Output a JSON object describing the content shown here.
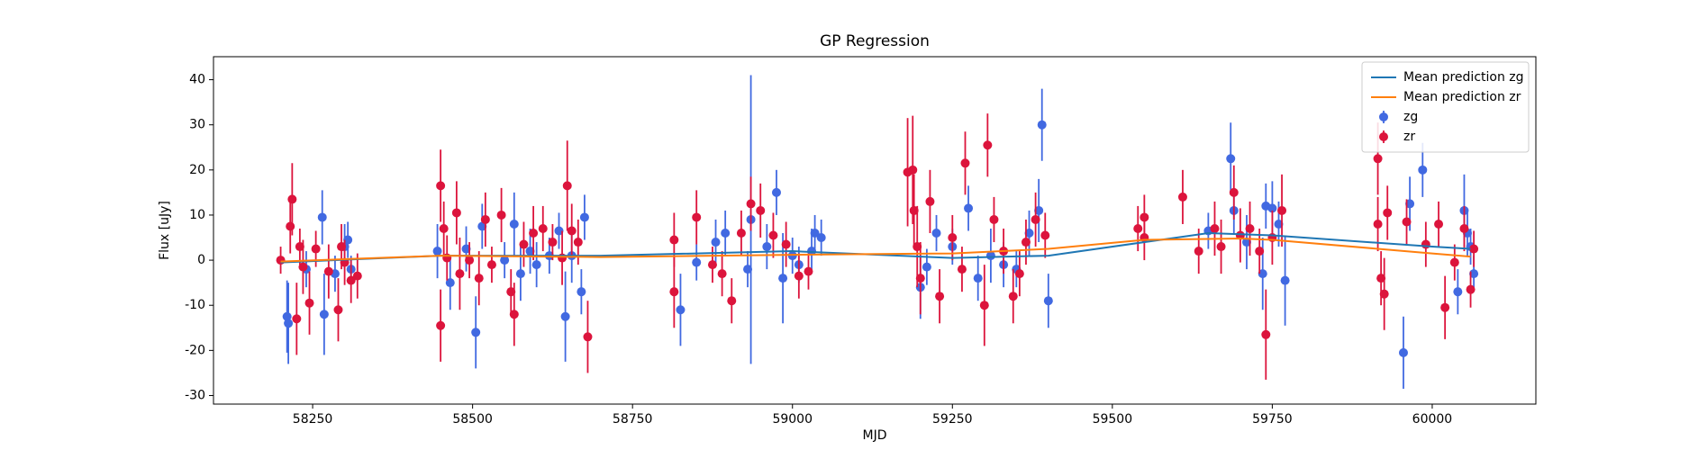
{
  "chart_data": {
    "type": "scatter",
    "title": "GP Regression",
    "xlabel": "MJD",
    "ylabel": "Flux [uJy]",
    "xlim": [
      58095,
      60162
    ],
    "ylim": [
      -31.9,
      45.1
    ],
    "xticks": [
      58250,
      58500,
      58750,
      59000,
      59250,
      59500,
      59750,
      60000
    ],
    "yticks": [
      -30,
      -20,
      -10,
      0,
      10,
      20,
      30,
      40
    ],
    "legend": "upper right",
    "series": [
      {
        "name": "Mean prediction zg",
        "type": "line",
        "color": "#1f77b4",
        "x": [
          58200,
          58450,
          58700,
          59000,
          59250,
          59400,
          59650,
          59750,
          60000,
          60060
        ],
        "values": [
          -0.5,
          1,
          1,
          2,
          0.5,
          1,
          6,
          5.5,
          3,
          2.5
        ]
      },
      {
        "name": "Mean prediction zr",
        "type": "line",
        "color": "#ff7f0e",
        "x": [
          58200,
          58450,
          58700,
          59000,
          59250,
          59400,
          59550,
          59700,
          59750,
          60000,
          60060
        ],
        "values": [
          -0.3,
          1,
          0.7,
          1.2,
          1.5,
          2.5,
          4.5,
          4.8,
          4.5,
          1.5,
          0.8
        ]
      },
      {
        "name": "zg",
        "type": "errorbar",
        "color": "#4169e1",
        "x": [
          58210,
          58212,
          58240,
          58265,
          58268,
          58285,
          58300,
          58305,
          58310,
          58445,
          58465,
          58490,
          58505,
          58515,
          58550,
          58565,
          58575,
          58590,
          58600,
          58620,
          58635,
          58645,
          58655,
          58675,
          58670,
          58825,
          58850,
          58880,
          58895,
          58930,
          58935,
          58960,
          58975,
          58985,
          59000,
          59010,
          59030,
          59035,
          59045,
          59200,
          59210,
          59225,
          59250,
          59275,
          59290,
          59310,
          59330,
          59350,
          59370,
          59385,
          59390,
          59400,
          59650,
          59685,
          59690,
          59710,
          59735,
          59740,
          59750,
          59760,
          59770,
          59955,
          59965,
          59985,
          60040,
          60050,
          60055,
          60065,
          60060
        ],
        "values": [
          -12.5,
          -14,
          -2,
          9.5,
          -12,
          -3,
          3,
          4.5,
          -2,
          2,
          -5,
          2.5,
          -16,
          7.5,
          0,
          8,
          -3,
          2,
          -1,
          1,
          6.5,
          -12.5,
          1,
          9.5,
          -7,
          -11,
          -0.5,
          4,
          6,
          -2,
          9,
          3,
          15,
          -4,
          1,
          -1,
          2,
          6,
          5,
          -6,
          -1.5,
          6,
          3,
          11.5,
          -4,
          1,
          -1,
          -2,
          6,
          11,
          30,
          -9,
          6.5,
          22.5,
          11,
          4,
          -3,
          12,
          11.5,
          8,
          -4.5,
          -20.5,
          12.5,
          20,
          -7,
          11,
          6,
          -3,
          3
        ],
        "errors": [
          8,
          9,
          4,
          6,
          9,
          4,
          5,
          4,
          3,
          6,
          6,
          5,
          8,
          5,
          4,
          7,
          6,
          5,
          5,
          4,
          4,
          10,
          6,
          5,
          5,
          8,
          4,
          5,
          5,
          4,
          32,
          5,
          5,
          10,
          4,
          4,
          5,
          4,
          4,
          7,
          4,
          4,
          4,
          5,
          5,
          6,
          5,
          4,
          5,
          7,
          8,
          6,
          4,
          8,
          5,
          6,
          8,
          5,
          6,
          5,
          10,
          8,
          6,
          6,
          5,
          8,
          5,
          4,
          4
        ]
      },
      {
        "name": "zr",
        "type": "errorbar",
        "color": "#dc143c",
        "x": [
          58200,
          58215,
          58218,
          58225,
          58230,
          58235,
          58245,
          58255,
          58275,
          58290,
          58295,
          58300,
          58310,
          58320,
          58450,
          58455,
          58450,
          58460,
          58475,
          58480,
          58495,
          58510,
          58520,
          58530,
          58545,
          58560,
          58565,
          58580,
          58595,
          58610,
          58625,
          58640,
          58648,
          58655,
          58665,
          58680,
          58815,
          58815,
          58850,
          58875,
          58890,
          58905,
          58920,
          58935,
          58950,
          58970,
          58990,
          59010,
          59025,
          59180,
          59188,
          59190,
          59195,
          59200,
          59215,
          59230,
          59250,
          59265,
          59270,
          59300,
          59305,
          59315,
          59330,
          59345,
          59355,
          59365,
          59380,
          59395,
          59540,
          59550,
          59550,
          59610,
          59635,
          59660,
          59670,
          59690,
          59700,
          59715,
          59730,
          59740,
          59750,
          59765,
          59915,
          59915,
          59920,
          59925,
          59930,
          59960,
          59990,
          60010,
          60020,
          60035,
          60050,
          60060,
          60065
        ],
        "values": [
          0,
          7.5,
          13.5,
          -13,
          3,
          -1.5,
          -9.5,
          2.5,
          -2.5,
          -11,
          3,
          -0.5,
          -4.5,
          -3.5,
          16.5,
          7,
          -14.5,
          0.5,
          10.5,
          -3,
          0,
          -4,
          9,
          -1,
          10,
          -7,
          -12,
          3.5,
          6,
          7,
          4,
          0.5,
          16.5,
          6.5,
          4,
          -17,
          4.5,
          -7,
          9.5,
          -1,
          -3,
          -9,
          6,
          12.5,
          11,
          5.5,
          3.5,
          -3.5,
          -2.5,
          19.5,
          20,
          11,
          3,
          -4,
          13,
          -8,
          5,
          -2,
          21.5,
          -10,
          25.5,
          9,
          2,
          -8,
          -3,
          4,
          9,
          5.5,
          7,
          9.5,
          5,
          14,
          2,
          7,
          3,
          15,
          5.5,
          7,
          2,
          -16.5,
          5,
          11,
          22.5,
          8,
          -4,
          -7.5,
          10.5,
          8.5,
          3.5,
          8,
          -10.5,
          -0.5,
          7,
          -6.5,
          2.5
        ],
        "errors": [
          3,
          6,
          8,
          8,
          4,
          6,
          7,
          4,
          6,
          7,
          5,
          5,
          5,
          5,
          8,
          6,
          8,
          5,
          7,
          8,
          4,
          6,
          6,
          4,
          6,
          5,
          7,
          5,
          6,
          5,
          4,
          6,
          10,
          6,
          5,
          8,
          6,
          8,
          6,
          4,
          5,
          5,
          5,
          6,
          6,
          5,
          5,
          5,
          4,
          12,
          12,
          8,
          9,
          8,
          7,
          6,
          5,
          5,
          7,
          9,
          7,
          5,
          5,
          6,
          5,
          5,
          6,
          5,
          5,
          5,
          5,
          6,
          5,
          6,
          6,
          6,
          6,
          6,
          5,
          10,
          6,
          8,
          8,
          6,
          6,
          8,
          6,
          5,
          5,
          5,
          7,
          4,
          5,
          4,
          4
        ]
      }
    ]
  }
}
